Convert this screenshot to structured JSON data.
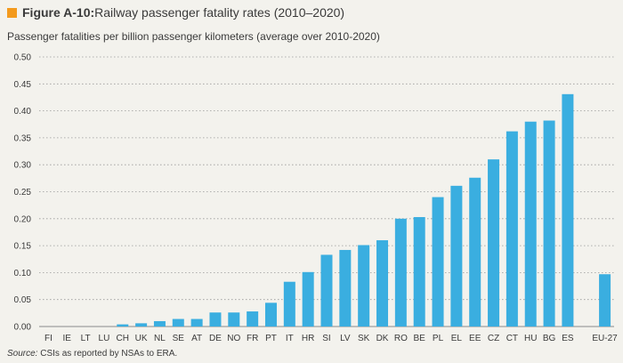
{
  "figure": {
    "label": "Figure A-10:",
    "title": " Railway passenger fatality rates (2010–2020)",
    "marker_color": "#f39a1d"
  },
  "source": {
    "label": "Source:",
    "text": " CSIs as reported by NSAs to ERA."
  },
  "chart_data": {
    "type": "bar",
    "ylabel": "Passenger fatalities per billion passenger kilometers (average over 2010-2020)",
    "categories": [
      "FI",
      "IE",
      "LT",
      "LU",
      "CH",
      "UK",
      "NL",
      "SE",
      "AT",
      "DE",
      "NO",
      "FR",
      "PT",
      "IT",
      "HR",
      "SI",
      "LV",
      "SK",
      "DK",
      "RO",
      "BE",
      "PL",
      "EL",
      "EE",
      "CZ",
      "CT",
      "HU",
      "BG",
      "ES",
      "",
      "EU-27"
    ],
    "values": [
      0,
      0,
      0,
      0,
      0.004,
      0.006,
      0.01,
      0.014,
      0.014,
      0.026,
      0.026,
      0.028,
      0.044,
      0.083,
      0.101,
      0.133,
      0.142,
      0.151,
      0.16,
      0.2,
      0.203,
      0.24,
      0.261,
      0.276,
      0.31,
      0.362,
      0.38,
      0.382,
      0.431,
      0,
      0.097
    ],
    "ylim": [
      0,
      0.5
    ],
    "yticks": [
      "0.00",
      "0.05",
      "0.10",
      "0.15",
      "0.20",
      "0.25",
      "0.30",
      "0.35",
      "0.40",
      "0.45",
      "0.50"
    ],
    "bar_color": "#3aaee0",
    "grid": "dotted-horizontal"
  }
}
